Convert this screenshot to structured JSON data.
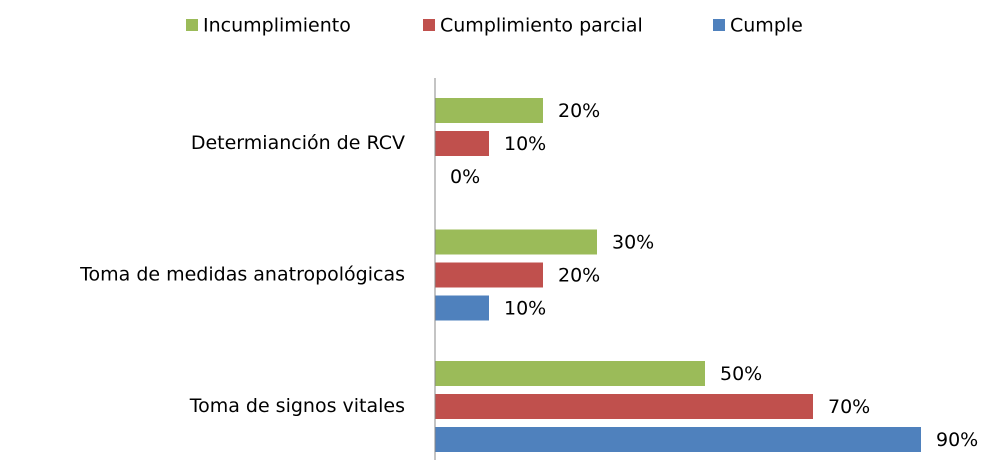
{
  "chart_data": {
    "type": "barh",
    "categories": [
      "Determianción de RCV",
      "Toma de medidas anatropológicas",
      "Toma de signos vitales"
    ],
    "series": [
      {
        "name": "Incumplimiento",
        "color": "#9bbb59",
        "values": [
          20,
          30,
          50
        ],
        "value_labels": [
          "20%",
          "30%",
          "50%"
        ]
      },
      {
        "name": "Cumplimiento parcial",
        "color": "#c0504d",
        "values": [
          10,
          20,
          70
        ],
        "value_labels": [
          "10%",
          "20%",
          "70%"
        ]
      },
      {
        "name": "Cumple",
        "color": "#4f81bd",
        "values": [
          0,
          10,
          90
        ],
        "value_labels": [
          "0%",
          "10%",
          "90%"
        ]
      }
    ],
    "xlim": [
      0,
      90
    ],
    "legend": "top"
  }
}
